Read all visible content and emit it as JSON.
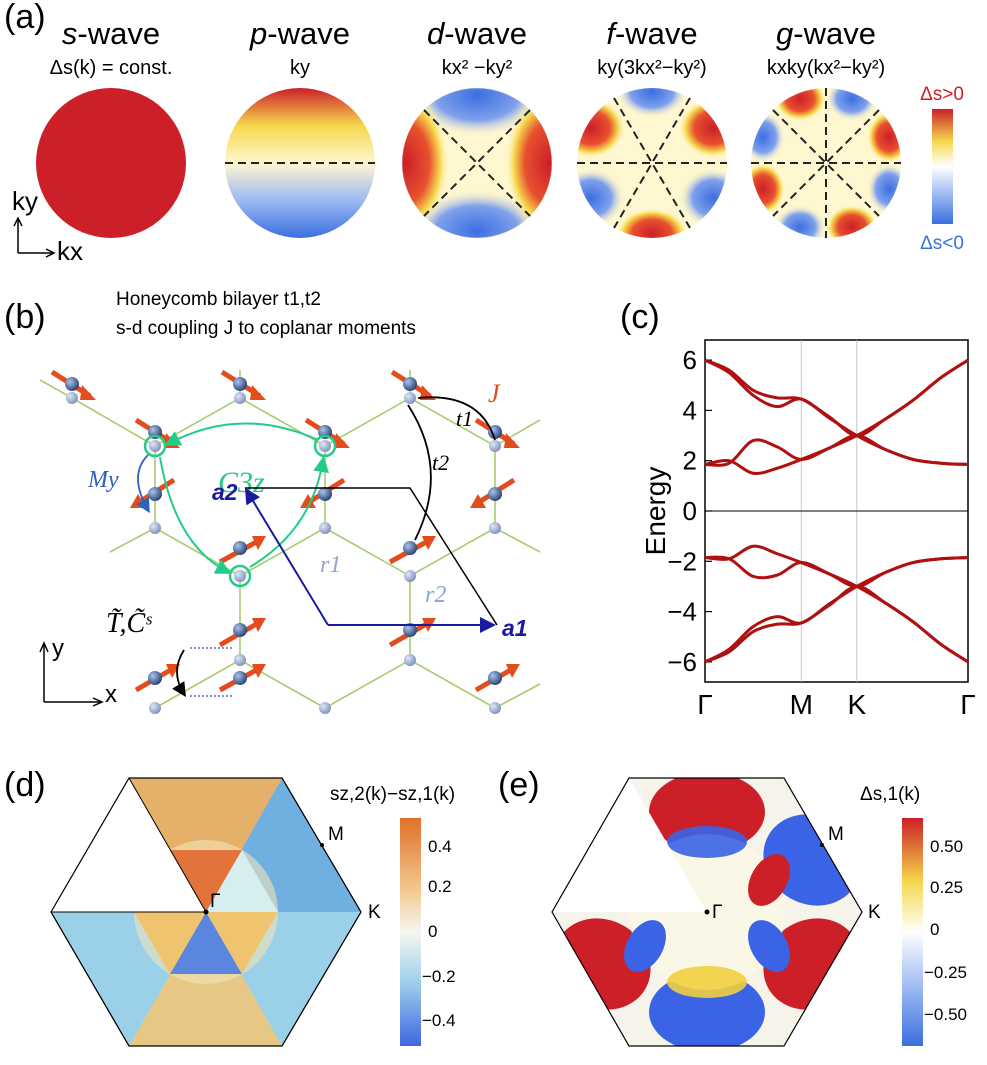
{
  "panel_a": {
    "label": "(a)",
    "waves": [
      {
        "name": "s",
        "suffix": "-wave",
        "formula": "Δs(k) = const."
      },
      {
        "name": "p",
        "suffix": "-wave",
        "formula": "ky"
      },
      {
        "name": "d",
        "suffix": "-wave",
        "formula": "kx² −ky²"
      },
      {
        "name": "f",
        "suffix": "-wave",
        "formula": "ky(3kx²−ky²)"
      },
      {
        "name": "g",
        "suffix": "-wave",
        "formula": "kxky(kx²−ky²)"
      }
    ],
    "axis_ky": "ky",
    "axis_kx": "kx",
    "colorbar_top": "Δs>0",
    "colorbar_bottom": "Δs<0",
    "colors": {
      "positive": "#cc1f28",
      "mid": "#fff7cf",
      "negative": "#3b6fe0",
      "warm": "#f5d84c"
    }
  },
  "panel_b": {
    "label": "(b)",
    "desc_line1": "Honeycomb bilayer t1,t2",
    "desc_line2": "s-d coupling J to coplanar moments",
    "t1": "t1",
    "t2": "t2",
    "J": "J",
    "C3z": "C3z",
    "My": "My",
    "a1": "a1",
    "a2": "a2",
    "r1": "r1",
    "r2": "r2",
    "sym": "T̃,C̃ˢ",
    "axis_x": "x",
    "axis_y": "y"
  },
  "panel_c": {
    "label": "(c)"
  },
  "panel_d": {
    "label": "(d)",
    "title": "sz,2(k)−sz,1(k)",
    "gamma": "Γ",
    "m": "M",
    "k": "K",
    "ticks": [
      "0.4",
      "0.2",
      "0",
      "−0.2",
      "−0.4"
    ]
  },
  "panel_e": {
    "label": "(e)",
    "title": "Δs,1(k)",
    "gamma": "Γ",
    "m": "M",
    "k": "K",
    "ticks": [
      "0.50",
      "0.25",
      "0",
      "−0.25",
      "−0.50"
    ]
  },
  "chart_data": {
    "type": "line",
    "title": "",
    "xlabel": "",
    "ylabel": "Energy",
    "x_ticks": [
      "Γ",
      "M",
      "K",
      "Γ"
    ],
    "x_positions": [
      0,
      1,
      1.577,
      2.732
    ],
    "yticks": [
      -6,
      -4,
      -2,
      0,
      2,
      4,
      6
    ],
    "ylim": [
      -6.8,
      6.8
    ],
    "line_color": "#b01010",
    "series": [
      {
        "name": "band 1",
        "x": [
          0,
          0.25,
          0.5,
          0.75,
          1,
          1.29,
          1.577,
          1.87,
          2.16,
          2.45,
          2.732
        ],
        "y": [
          6.0,
          5.6,
          4.8,
          4.5,
          4.45,
          3.75,
          3.0,
          3.65,
          4.4,
          5.3,
          6.0
        ]
      },
      {
        "name": "band 2",
        "x": [
          0,
          0.25,
          0.5,
          0.75,
          1,
          1.29,
          1.577,
          1.87,
          2.16,
          2.45,
          2.732
        ],
        "y": [
          6.0,
          5.5,
          4.6,
          4.15,
          4.45,
          3.7,
          3.0,
          2.45,
          2.05,
          1.9,
          1.85
        ]
      },
      {
        "name": "band 3",
        "x": [
          0,
          0.25,
          0.5,
          0.75,
          1,
          1.29,
          1.577,
          1.87,
          2.16,
          2.45,
          2.732
        ],
        "y": [
          1.85,
          1.9,
          2.8,
          2.55,
          2.05,
          2.5,
          3.0,
          2.45,
          2.05,
          1.9,
          1.85
        ]
      },
      {
        "name": "band 4",
        "x": [
          0,
          0.25,
          0.5,
          0.75,
          1,
          1.29,
          1.577,
          1.87,
          2.16,
          2.45,
          2.732
        ],
        "y": [
          1.85,
          2.0,
          1.5,
          1.7,
          2.05,
          2.5,
          3.0,
          3.65,
          4.4,
          5.3,
          6.0
        ]
      },
      {
        "name": "band 5",
        "x": [
          0,
          0.25,
          0.5,
          0.75,
          1,
          1.29,
          1.577,
          1.87,
          2.16,
          2.45,
          2.732
        ],
        "y": [
          -1.85,
          -1.9,
          -1.4,
          -1.7,
          -2.05,
          -2.5,
          -3.0,
          -2.45,
          -2.05,
          -1.9,
          -1.85
        ]
      },
      {
        "name": "band 6",
        "x": [
          0,
          0.25,
          0.5,
          0.75,
          1,
          1.29,
          1.577,
          1.87,
          2.16,
          2.45,
          2.732
        ],
        "y": [
          -1.85,
          -1.9,
          -2.6,
          -2.55,
          -2.05,
          -2.5,
          -3.0,
          -3.65,
          -4.4,
          -5.3,
          -6.0
        ]
      },
      {
        "name": "band 7",
        "x": [
          0,
          0.25,
          0.5,
          0.75,
          1,
          1.29,
          1.577,
          1.87,
          2.16,
          2.45,
          2.732
        ],
        "y": [
          -6.0,
          -5.5,
          -4.6,
          -4.2,
          -4.45,
          -3.7,
          -3.0,
          -2.45,
          -2.05,
          -1.9,
          -1.85
        ]
      },
      {
        "name": "band 8",
        "x": [
          0,
          0.25,
          0.5,
          0.75,
          1,
          1.29,
          1.577,
          1.87,
          2.16,
          2.45,
          2.732
        ],
        "y": [
          -6.0,
          -5.6,
          -4.8,
          -4.5,
          -4.45,
          -3.75,
          -3.0,
          -3.65,
          -4.4,
          -5.3,
          -6.0
        ]
      }
    ]
  }
}
